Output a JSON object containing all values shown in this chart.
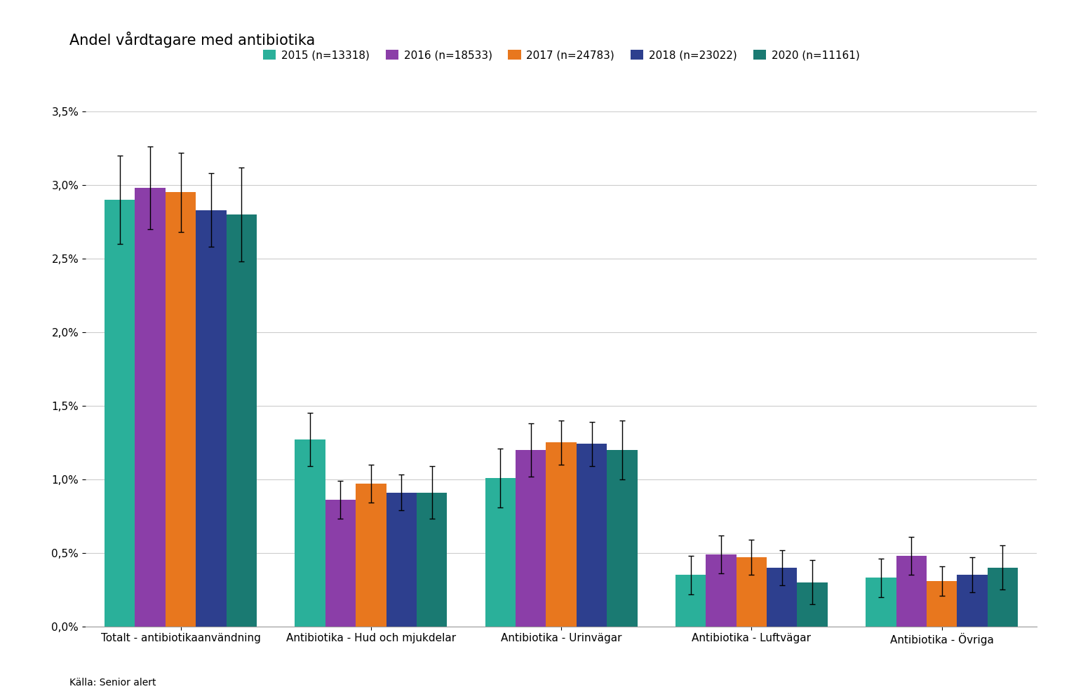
{
  "title": "Andel vårdtagare med antibiotika",
  "categories": [
    "Totalt - antibiotikaanvändning",
    "Antibiotika - Hud och mjukdelar",
    "Antibiotika - Urinvägar",
    "Antibiotika - Luftvägar",
    "Antibiotika - Övriga"
  ],
  "years": [
    "2015 (n=13318)",
    "2016 (n=18533)",
    "2017 (n=24783)",
    "2018 (n=23022)",
    "2020 (n=11161)"
  ],
  "colors": [
    "#2AB09A",
    "#8B3EA8",
    "#E8771E",
    "#2D3F8E",
    "#1A7A72"
  ],
  "values": [
    [
      0.029,
      0.0298,
      0.0295,
      0.0283,
      0.028
    ],
    [
      0.0127,
      0.0086,
      0.0097,
      0.0091,
      0.0091
    ],
    [
      0.0101,
      0.012,
      0.0125,
      0.0124,
      0.012
    ],
    [
      0.0035,
      0.0049,
      0.0047,
      0.004,
      0.003
    ],
    [
      0.0033,
      0.0048,
      0.0031,
      0.0035,
      0.004
    ]
  ],
  "errors": [
    [
      0.003,
      0.0028,
      0.0027,
      0.0025,
      0.0032
    ],
    [
      0.0018,
      0.0013,
      0.0013,
      0.0012,
      0.0018
    ],
    [
      0.002,
      0.0018,
      0.0015,
      0.0015,
      0.002
    ],
    [
      0.0013,
      0.0013,
      0.0012,
      0.0012,
      0.0015
    ],
    [
      0.0013,
      0.0013,
      0.001,
      0.0012,
      0.0015
    ]
  ],
  "ylim": [
    0.0,
    0.035
  ],
  "yticks": [
    0.0,
    0.005,
    0.01,
    0.015,
    0.02,
    0.025,
    0.03,
    0.035
  ],
  "ytick_labels": [
    "0,0%",
    "0,5%",
    "1,0%",
    "1,5%",
    "2,0%",
    "2,5%",
    "3,0%",
    "3,5%"
  ],
  "source": "Källa: Senior alert",
  "background_color": "#FFFFFF",
  "grid_color": "#CCCCCC"
}
